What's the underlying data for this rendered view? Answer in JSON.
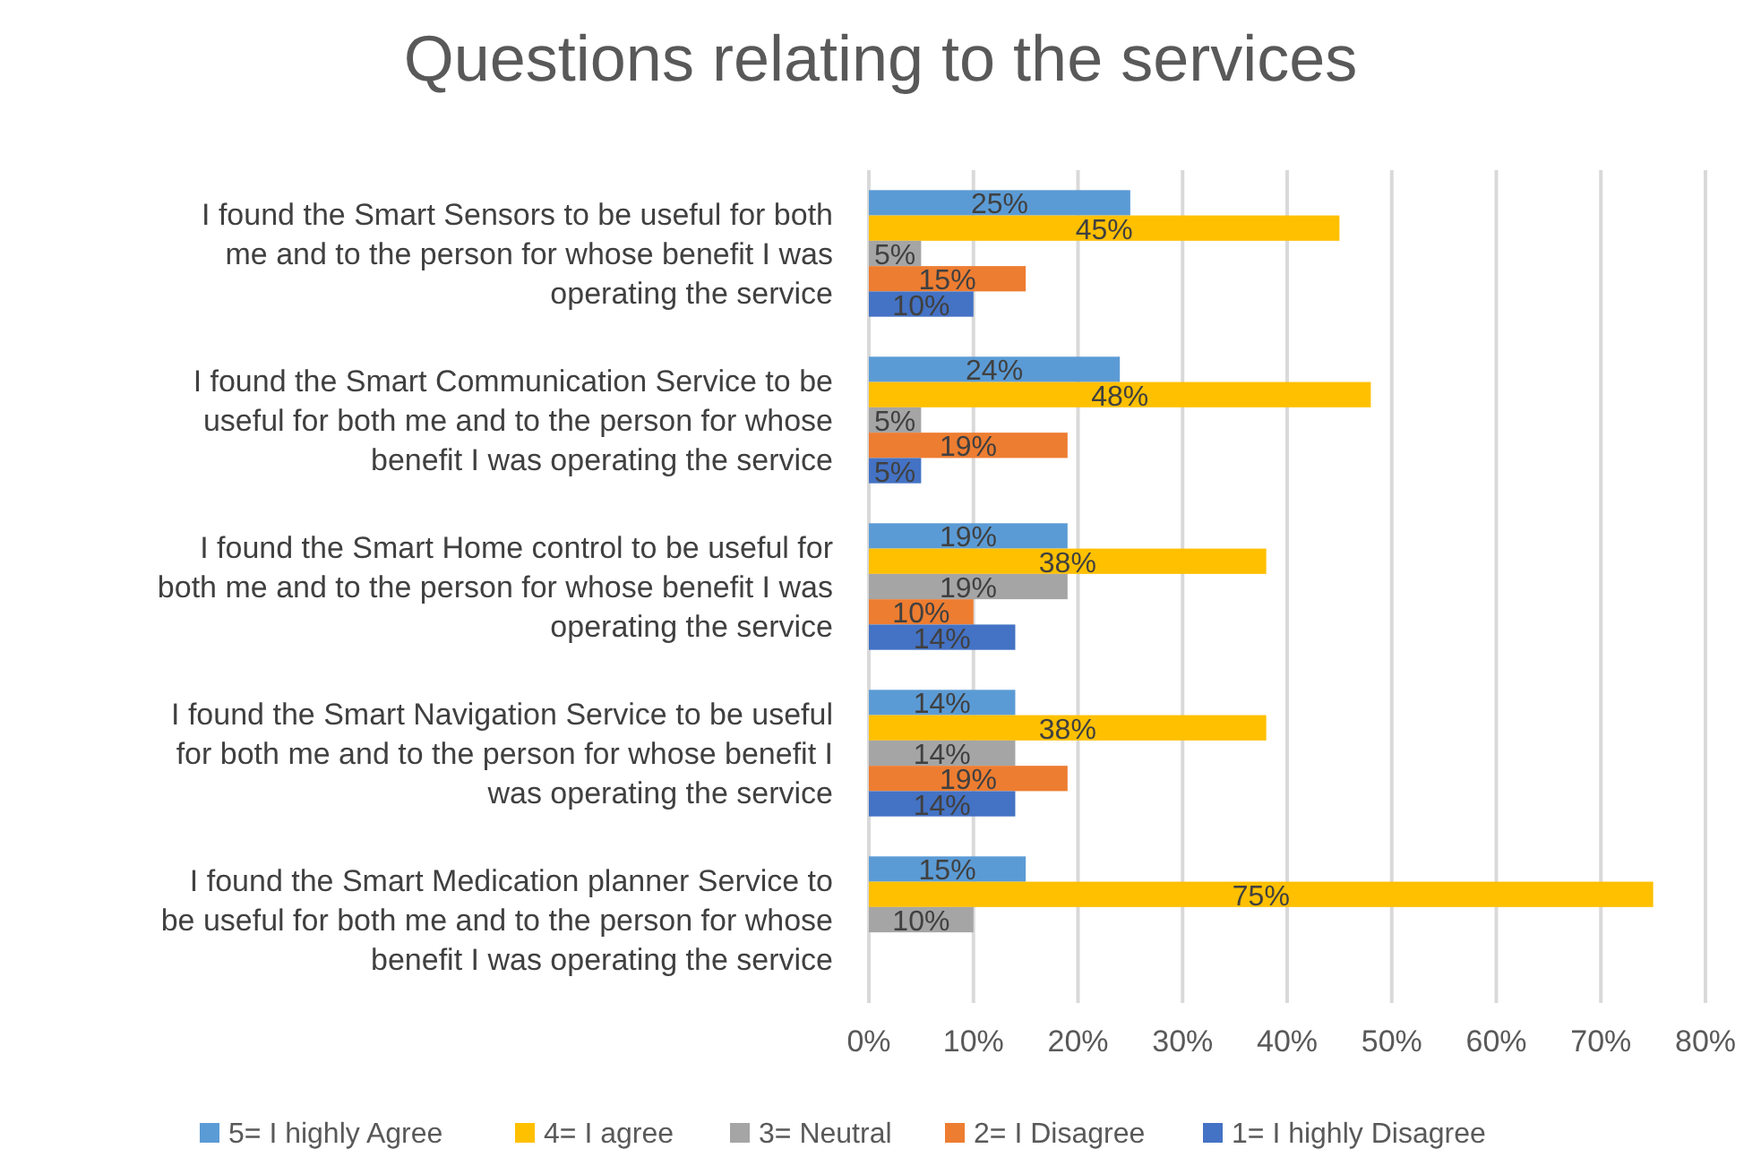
{
  "chart_data": {
    "type": "bar",
    "orientation": "horizontal",
    "title": "Questions relating to the services",
    "categories": [
      "I found the Smart Sensors to be useful for both me and to the person for whose benefit I was operating the service",
      "I found the Smart Communication Service to be useful for both me and to the person for whose benefit I was operating the service",
      "I found the Smart Home control  to be useful for both me and to the person for whose benefit I was operating the service",
      "I found the Smart Navigation Service to be useful for both me and to the person for whose benefit I was operating the service",
      "I found the Smart Medication planner Service to be useful for both me and to the person for whose benefit I was operating the service"
    ],
    "series": [
      {
        "name": "5= I highly Agree",
        "color": "#5b9bd5",
        "values": [
          25,
          24,
          19,
          14,
          15
        ],
        "value_labels": [
          "25%",
          "24%",
          "19%",
          "14%",
          "15%"
        ]
      },
      {
        "name": "4= I agree",
        "color": "#ffc000",
        "values": [
          45,
          48,
          38,
          38,
          75
        ],
        "value_labels": [
          "45%",
          "48%",
          "38%",
          "38%",
          "75%"
        ]
      },
      {
        "name": "3= Neutral",
        "color": "#a5a5a5",
        "values": [
          5,
          5,
          19,
          14,
          10
        ],
        "value_labels": [
          "5%",
          "5%",
          "19%",
          "14%",
          "10%"
        ]
      },
      {
        "name": "2= I Disagree",
        "color": "#ed7d31",
        "values": [
          15,
          19,
          10,
          19,
          null
        ],
        "value_labels": [
          "15%",
          "19%",
          "10%",
          "19%",
          null
        ]
      },
      {
        "name": "1= I highly Disagree",
        "color": "#4472c4",
        "values": [
          10,
          5,
          14,
          14,
          null
        ],
        "value_labels": [
          "10%",
          "5%",
          "14%",
          "14%",
          null
        ]
      }
    ],
    "xlim": [
      0,
      80
    ],
    "xticks": [
      {
        "value": 0,
        "label": "0%"
      },
      {
        "value": 10,
        "label": "10%"
      },
      {
        "value": 20,
        "label": "20%"
      },
      {
        "value": 30,
        "label": "30%"
      },
      {
        "value": 40,
        "label": "40%"
      },
      {
        "value": 50,
        "label": "50%"
      },
      {
        "value": 60,
        "label": "60%"
      },
      {
        "value": 70,
        "label": "70%"
      },
      {
        "value": 80,
        "label": "80%"
      }
    ],
    "grid": "x",
    "legend": "bottom"
  }
}
